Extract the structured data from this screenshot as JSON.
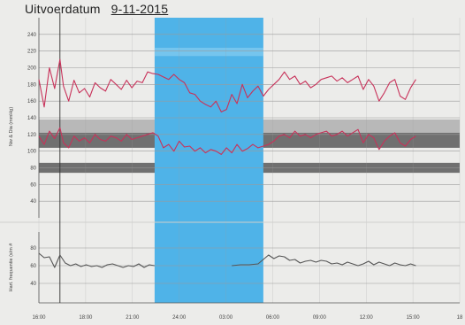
{
  "header": {
    "label": "Uitvoerdatum",
    "date": "9-11-2015"
  },
  "colors": {
    "background": "#ececea",
    "highlight_band": "#4fb3e8",
    "highlight_band_light": "#8fd0f2",
    "bp_line": "#c8325a",
    "hr_line": "#555555",
    "gray_band_light": "#b8b8b8",
    "gray_band_dark": "#707070",
    "grid": "#9a9a9a"
  },
  "chart_data": [
    {
      "type": "line",
      "title": "",
      "ylabel": "Nw & Dia (mmHg)",
      "ylim": [
        20,
        260
      ],
      "yticks": [
        40,
        60,
        80,
        100,
        120,
        140,
        160,
        180,
        200,
        220,
        240
      ],
      "ytick_labels": [
        "40",
        "60",
        "80",
        "100",
        "120",
        "140",
        "160",
        "180",
        "200",
        "220",
        "240"
      ],
      "xlim": [
        16,
        40
      ],
      "xtick_labels": [
        "16:00",
        "18:00",
        "21:00",
        "24:00",
        "03:00",
        "06:00",
        "09:00",
        "12:00",
        "15:00",
        "18"
      ],
      "highlight_interval": [
        22.6,
        28.8
      ],
      "reference_bands": [
        {
          "from": 120,
          "to": 138,
          "tone": "light"
        },
        {
          "from": 104,
          "to": 122,
          "tone": "dark"
        },
        {
          "from": 74,
          "to": 86,
          "tone": "dark"
        }
      ],
      "series": [
        {
          "x": [
            16.0,
            16.3,
            16.6,
            16.9,
            17.2,
            17.4,
            17.7,
            18.0,
            18.3,
            18.6,
            18.9,
            19.2,
            19.5,
            19.8,
            20.1,
            20.4,
            20.7,
            21.0,
            21.3,
            21.6,
            21.9,
            22.2,
            22.5,
            22.8,
            23.1,
            23.4,
            23.7,
            24.0,
            24.3,
            24.6,
            24.9,
            25.2,
            25.5,
            25.8,
            26.1,
            26.4,
            26.7,
            27.0,
            27.3,
            27.6,
            27.9,
            28.2,
            28.5,
            28.8,
            29.1,
            29.4,
            29.7,
            30.0,
            30.3,
            30.6,
            30.9,
            31.2,
            31.5,
            31.8,
            32.1,
            32.4,
            32.7,
            33.0,
            33.3,
            33.6,
            33.9,
            34.2,
            34.5,
            34.8,
            35.1,
            35.4,
            35.7,
            36.0,
            36.3,
            36.6,
            36.9,
            37.2,
            37.5
          ],
          "y": [
            186,
            153,
            200,
            175,
            210,
            178,
            160,
            185,
            170,
            175,
            165,
            182,
            176,
            172,
            186,
            180,
            174,
            185,
            176,
            184,
            182,
            195,
            193,
            192,
            189,
            186,
            192,
            186,
            182,
            170,
            168,
            160,
            156,
            153,
            160,
            147,
            150,
            168,
            157,
            180,
            164,
            172,
            178,
            166,
            174,
            180,
            186,
            195,
            186,
            190,
            180,
            184,
            176,
            180,
            186,
            188,
            190,
            184,
            188,
            182,
            186,
            190,
            174,
            186,
            178,
            160,
            170,
            182,
            186,
            166,
            162,
            176,
            186
          ]
        },
        {
          "x": [
            16.0,
            16.3,
            16.6,
            16.9,
            17.2,
            17.4,
            17.7,
            18.0,
            18.3,
            18.6,
            18.9,
            19.2,
            19.5,
            19.8,
            20.1,
            20.4,
            20.7,
            21.0,
            21.3,
            21.6,
            21.9,
            22.2,
            22.5,
            22.8,
            23.1,
            23.4,
            23.7,
            24.0,
            24.3,
            24.6,
            24.9,
            25.2,
            25.5,
            25.8,
            26.1,
            26.4,
            26.7,
            27.0,
            27.3,
            27.6,
            27.9,
            28.2,
            28.5,
            28.8,
            29.1,
            29.4,
            29.7,
            30.0,
            30.3,
            30.6,
            30.9,
            31.2,
            31.5,
            31.8,
            32.1,
            32.4,
            32.7,
            33.0,
            33.3,
            33.6,
            33.9,
            34.2,
            34.5,
            34.8,
            35.1,
            35.4,
            35.7,
            36.0,
            36.3,
            36.6,
            36.9,
            37.2,
            37.5
          ],
          "y": [
            118,
            108,
            124,
            115,
            128,
            110,
            104,
            118,
            112,
            116,
            110,
            120,
            114,
            112,
            118,
            116,
            112,
            120,
            114,
            116,
            118,
            120,
            122,
            118,
            104,
            108,
            100,
            112,
            105,
            106,
            100,
            104,
            98,
            102,
            100,
            96,
            104,
            98,
            108,
            100,
            103,
            108,
            104,
            106,
            108,
            112,
            118,
            120,
            116,
            124,
            118,
            120,
            116,
            120,
            122,
            124,
            118,
            120,
            124,
            118,
            122,
            126,
            110,
            120,
            116,
            102,
            112,
            118,
            122,
            110,
            106,
            114,
            118
          ]
        }
      ]
    },
    {
      "type": "line",
      "title": "",
      "ylabel": "Hart. frequentie (s/m #",
      "ylim": [
        18,
        98
      ],
      "yticks": [
        40,
        60,
        80
      ],
      "ytick_labels": [
        "40",
        "60",
        "80"
      ],
      "xlim": [
        16,
        40
      ],
      "series": [
        {
          "x": [
            16.0,
            16.3,
            16.6,
            16.9,
            17.2,
            17.5,
            17.8,
            18.1,
            18.4,
            18.7,
            19.0,
            19.3,
            19.6,
            19.9,
            20.2,
            20.5,
            20.8,
            21.1,
            21.4,
            21.7,
            22.0,
            22.3,
            22.6,
            27.0,
            27.5,
            28.0,
            28.5,
            29.1,
            29.4,
            29.7,
            30.0,
            30.3,
            30.6,
            30.9,
            31.2,
            31.5,
            31.8,
            32.1,
            32.4,
            32.7,
            33.0,
            33.3,
            33.6,
            33.9,
            34.2,
            34.5,
            34.8,
            35.1,
            35.4,
            35.7,
            36.0,
            36.3,
            36.6,
            36.9,
            37.2,
            37.5
          ],
          "y": [
            74,
            69,
            70,
            58,
            72,
            63,
            60,
            62,
            59,
            61,
            59,
            60,
            58,
            61,
            62,
            60,
            58,
            60,
            59,
            62,
            58,
            61,
            60,
            60,
            61,
            61,
            62,
            72,
            68,
            71,
            70,
            66,
            67,
            63,
            65,
            66,
            64,
            66,
            65,
            62,
            63,
            61,
            64,
            62,
            60,
            62,
            65,
            61,
            64,
            62,
            60,
            63,
            61,
            60,
            62,
            60
          ]
        }
      ]
    }
  ]
}
